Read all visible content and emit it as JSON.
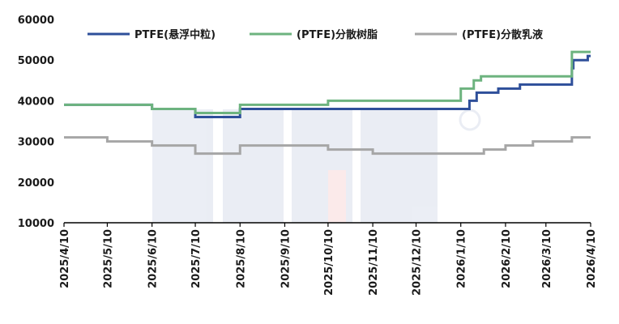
{
  "chart_data": {
    "type": "line",
    "title": "",
    "xlabel": "",
    "ylabel": "",
    "ylim": [
      10000,
      60000
    ],
    "yticks": [
      10000,
      20000,
      30000,
      40000,
      50000,
      60000
    ],
    "ytick_labels": [
      "10000",
      "20000",
      "30000",
      "40000",
      "50000",
      "60000"
    ],
    "xlim": [
      "2025-04-10",
      "2026-04-10"
    ],
    "xticks": [
      "2025-04-10",
      "2025-05-10",
      "2025-06-10",
      "2025-07-10",
      "2025-08-10",
      "2025-09-10",
      "2025-10-10",
      "2025-11-10",
      "2025-12-10",
      "2026-01-10",
      "2026-02-10",
      "2026-03-10",
      "2026-04-10"
    ],
    "xtick_labels": [
      "2025/4/10",
      "2025/5/10",
      "2025/6/10",
      "2025/7/10",
      "2025/8/10",
      "2025/9/10",
      "2025/10/10",
      "2025/11/10",
      "2025/12/10",
      "2026/1/10",
      "2026/2/10",
      "2026/3/10",
      "2026/4/10"
    ],
    "grid": false,
    "legend_position": "top",
    "series": [
      {
        "name": "PTFE(悬浮中粒)",
        "color": "#2e4f9a",
        "step": true,
        "x": [
          "2025-04-10",
          "2025-06-10",
          "2025-07-10",
          "2025-08-10",
          "2026-01-10",
          "2026-01-16",
          "2026-01-21",
          "2026-02-05",
          "2026-02-20",
          "2026-03-28",
          "2026-03-29",
          "2026-04-08",
          "2026-04-10"
        ],
        "values": [
          39000,
          38000,
          36000,
          38000,
          38000,
          40000,
          42000,
          43000,
          44000,
          48000,
          50000,
          51000,
          51000
        ]
      },
      {
        "name": "(PTFE)分散树脂",
        "color": "#6db37f",
        "step": true,
        "x": [
          "2025-04-10",
          "2025-06-10",
          "2025-07-10",
          "2025-08-10",
          "2025-10-10",
          "2026-01-10",
          "2026-01-19",
          "2026-01-24",
          "2026-03-28",
          "2026-04-10"
        ],
        "values": [
          39000,
          38000,
          37000,
          39000,
          40000,
          43000,
          45000,
          46000,
          52000,
          52000
        ]
      },
      {
        "name": "(PTFE)分散乳液",
        "color": "#a6a6a6",
        "step": true,
        "x": [
          "2025-04-10",
          "2025-05-10",
          "2025-06-10",
          "2025-07-10",
          "2025-08-10",
          "2025-10-10",
          "2025-11-10",
          "2026-01-10",
          "2026-01-26",
          "2026-02-10",
          "2026-03-01",
          "2026-03-28",
          "2026-04-10"
        ],
        "values": [
          31000,
          30000,
          29000,
          27000,
          29000,
          28000,
          27000,
          27000,
          28000,
          29000,
          30000,
          31000,
          31000
        ]
      }
    ]
  }
}
